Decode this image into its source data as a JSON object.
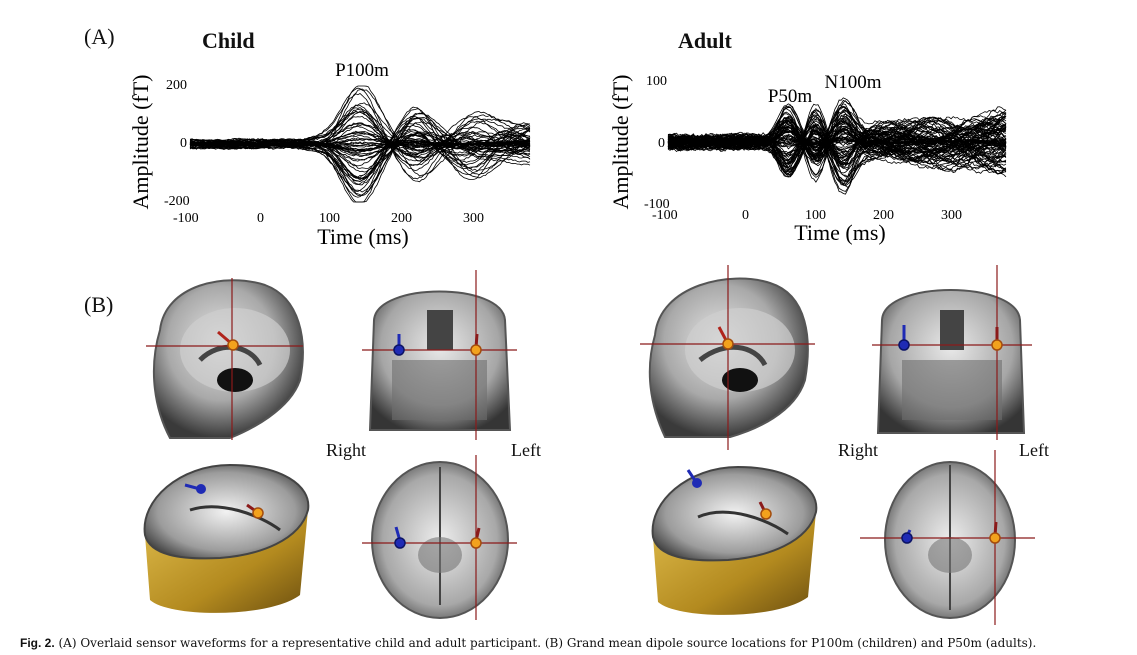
{
  "figure": {
    "panel_a": "(A)",
    "panel_b": "(B)",
    "orientation": {
      "right": "Right",
      "left": "Left"
    },
    "caption": {
      "label": "Fig. 2.",
      "text": "(A) Overlaid sensor waveforms for a representative child and adult participant. (B) Grand mean dipole source locations for P100m (children) and P50m (adults)."
    },
    "colors": {
      "waveform": "#000000",
      "left_dipole": "#1f2bb5",
      "right_dipole": "#e0801a",
      "crosshair": "#8b1a1a",
      "scalp": "#c9a22a"
    }
  },
  "chart_data": [
    {
      "type": "line",
      "title": "Child",
      "xlabel": "Time (ms)",
      "ylabel": "Amplitude (fT)",
      "xticks": [
        "-100",
        "0",
        "100",
        "200",
        "300"
      ],
      "yticks": [
        "200",
        "0",
        "-200"
      ],
      "xlim": [
        -100,
        380
      ],
      "ylim": [
        -200,
        200
      ],
      "annotations": [
        {
          "text": "P100m",
          "x": 140,
          "y": 215
        }
      ],
      "series_note": "overlaid sensor waveforms"
    },
    {
      "type": "line",
      "title": "Adult",
      "xlabel": "Time (ms)",
      "ylabel": "Amplitude (fT)",
      "xticks": [
        "-100",
        "0",
        "100",
        "200",
        "300"
      ],
      "yticks": [
        "100",
        "0",
        "-100"
      ],
      "xlim": [
        -100,
        380
      ],
      "ylim": [
        -100,
        100
      ],
      "annotations": [
        {
          "text": "P50m",
          "x": 70,
          "y": 55
        },
        {
          "text": "N100m",
          "x": 155,
          "y": 65
        }
      ],
      "series_note": "overlaid sensor waveforms"
    }
  ]
}
